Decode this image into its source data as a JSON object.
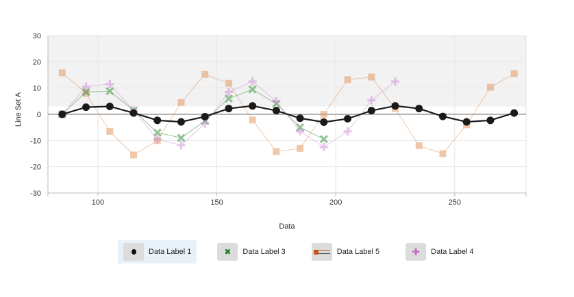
{
  "chart_data": {
    "type": "line",
    "xlabel": "Data",
    "ylabel": "Line Set A",
    "xlim": [
      79,
      280
    ],
    "ylim": [
      -30,
      30
    ],
    "x_ticks": [
      100,
      150,
      200,
      250
    ],
    "y_ticks": [
      -30,
      -20,
      -10,
      0,
      10,
      20,
      30
    ],
    "grid": true,
    "legend_position": "bottom",
    "band": {
      "from": 3,
      "to": 30,
      "color": "#f2f2f2"
    },
    "series": [
      {
        "name": "Data Label 1",
        "marker": "circle",
        "color": "#1a1a1a",
        "x": [
          85,
          95,
          105,
          115,
          125,
          135,
          145,
          155,
          165,
          175,
          185,
          195,
          205,
          215,
          225,
          235,
          245,
          255,
          265,
          275
        ],
        "values": [
          0,
          2.7,
          3,
          0.5,
          -2.3,
          -2.9,
          -0.9,
          2.2,
          3.2,
          1.4,
          -1.5,
          -3,
          -1.7,
          1.4,
          3.2,
          2.2,
          -0.8,
          -2.9,
          -2.3,
          0.5
        ]
      },
      {
        "name": "Data Label 3",
        "marker": "x",
        "color": "#2e8b2e",
        "x": [
          85,
          95,
          105,
          115,
          125,
          135,
          145,
          155,
          165,
          175,
          185,
          195
        ],
        "values": [
          0,
          8.5,
          8.8,
          1.5,
          -7,
          -9,
          -2.5,
          6,
          9.5,
          4,
          -5,
          -9.5
        ]
      },
      {
        "name": "Data Label 5",
        "marker": "square",
        "color": "#e0925a",
        "x": [
          85,
          95,
          105,
          115,
          125,
          135,
          145,
          155,
          165,
          175,
          185,
          195,
          205,
          215,
          225,
          235,
          245,
          255,
          265,
          275
        ],
        "values": [
          15.8,
          8,
          -6.5,
          -15.5,
          -10,
          4.5,
          15.2,
          11.8,
          -2.2,
          -14.2,
          -13,
          0,
          13.2,
          14.2,
          2.2,
          -12,
          -15,
          -4,
          10.3,
          15.5
        ]
      },
      {
        "name": "Data Label 4",
        "marker": "plus",
        "color": "#cc88d6",
        "x": [
          85,
          95,
          105,
          115,
          125,
          135,
          145,
          155,
          165,
          175,
          185,
          195,
          205,
          215,
          225
        ],
        "values": [
          0,
          10.5,
          11.5,
          1.5,
          -9.5,
          -11.8,
          -3.5,
          8.5,
          12.5,
          5,
          -6.5,
          -12.5,
          -6.5,
          5.3,
          12.5
        ]
      }
    ]
  },
  "legend": {
    "items": [
      {
        "label": "Data Label 1",
        "icon": "circle-marker-icon",
        "active": true
      },
      {
        "label": "Data Label 3",
        "icon": "x-marker-icon",
        "active": false
      },
      {
        "label": "Data Label 5",
        "icon": "square-marker-icon",
        "active": false
      },
      {
        "label": "Data Label 4",
        "icon": "plus-marker-icon",
        "active": false
      }
    ]
  }
}
